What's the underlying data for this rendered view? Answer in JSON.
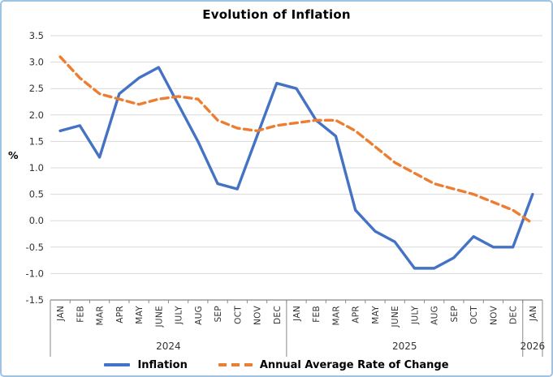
{
  "chart_data": {
    "type": "line",
    "title": "Evolution of Inflation",
    "ylabel": "%",
    "ylim": [
      -1.5,
      3.5
    ],
    "grid": true,
    "legend_position": "bottom",
    "yticks": [
      {
        "value": 3.5,
        "label": "3.5"
      },
      {
        "value": 3.0,
        "label": "3.0"
      },
      {
        "value": 2.5,
        "label": "2.5"
      },
      {
        "value": 2.0,
        "label": "2.0"
      },
      {
        "value": 1.5,
        "label": "1.5"
      },
      {
        "value": 1.0,
        "label": "1.0"
      },
      {
        "value": 0.5,
        "label": "0.5"
      },
      {
        "value": 0.0,
        "label": "0.0"
      },
      {
        "value": -0.5,
        "label": "-0.5"
      },
      {
        "value": -1.0,
        "label": "-1.0"
      },
      {
        "value": -1.5,
        "label": "-1.5"
      }
    ],
    "x_categories": [
      "JAN",
      "FEB",
      "MAR",
      "APR",
      "MAY",
      "JUNE",
      "JULY",
      "AUG",
      "SEP",
      "OCT",
      "NOV",
      "DEC",
      "JAN",
      "FEB",
      "MAR",
      "APR",
      "MAY",
      "JUNE",
      "JULY",
      "AUG",
      "SEP",
      "OCT",
      "NOV",
      "DEC",
      "JAN"
    ],
    "year_groups": [
      {
        "label": "2024",
        "start": 0,
        "count": 12
      },
      {
        "label": "2025",
        "start": 12,
        "count": 12
      },
      {
        "label": "2026",
        "start": 24,
        "count": 1
      }
    ],
    "series": [
      {
        "name": "Inflation",
        "style": "solid",
        "color": "#4472C4",
        "values": [
          1.7,
          1.8,
          1.2,
          2.4,
          2.7,
          2.9,
          2.2,
          1.5,
          0.7,
          0.6,
          1.6,
          2.6,
          2.5,
          1.9,
          1.6,
          0.2,
          -0.2,
          -0.4,
          -0.9,
          -0.9,
          -0.7,
          -0.3,
          -0.5,
          -0.5,
          0.5
        ]
      },
      {
        "name": "Annual Average Rate of Change",
        "style": "dashed",
        "color": "#ED7D31",
        "values": [
          3.1,
          2.7,
          2.4,
          2.3,
          2.2,
          2.3,
          2.35,
          2.3,
          1.9,
          1.75,
          1.7,
          1.8,
          1.85,
          1.9,
          1.9,
          1.7,
          1.4,
          1.1,
          0.9,
          0.7,
          0.6,
          0.5,
          0.35,
          0.2,
          -0.05
        ]
      }
    ]
  },
  "colors": {
    "gridline": "#D9D9D9",
    "axis": "#898989",
    "frame_border": "#9DC3E6",
    "tick_label": "#333333",
    "title": "#000000"
  }
}
